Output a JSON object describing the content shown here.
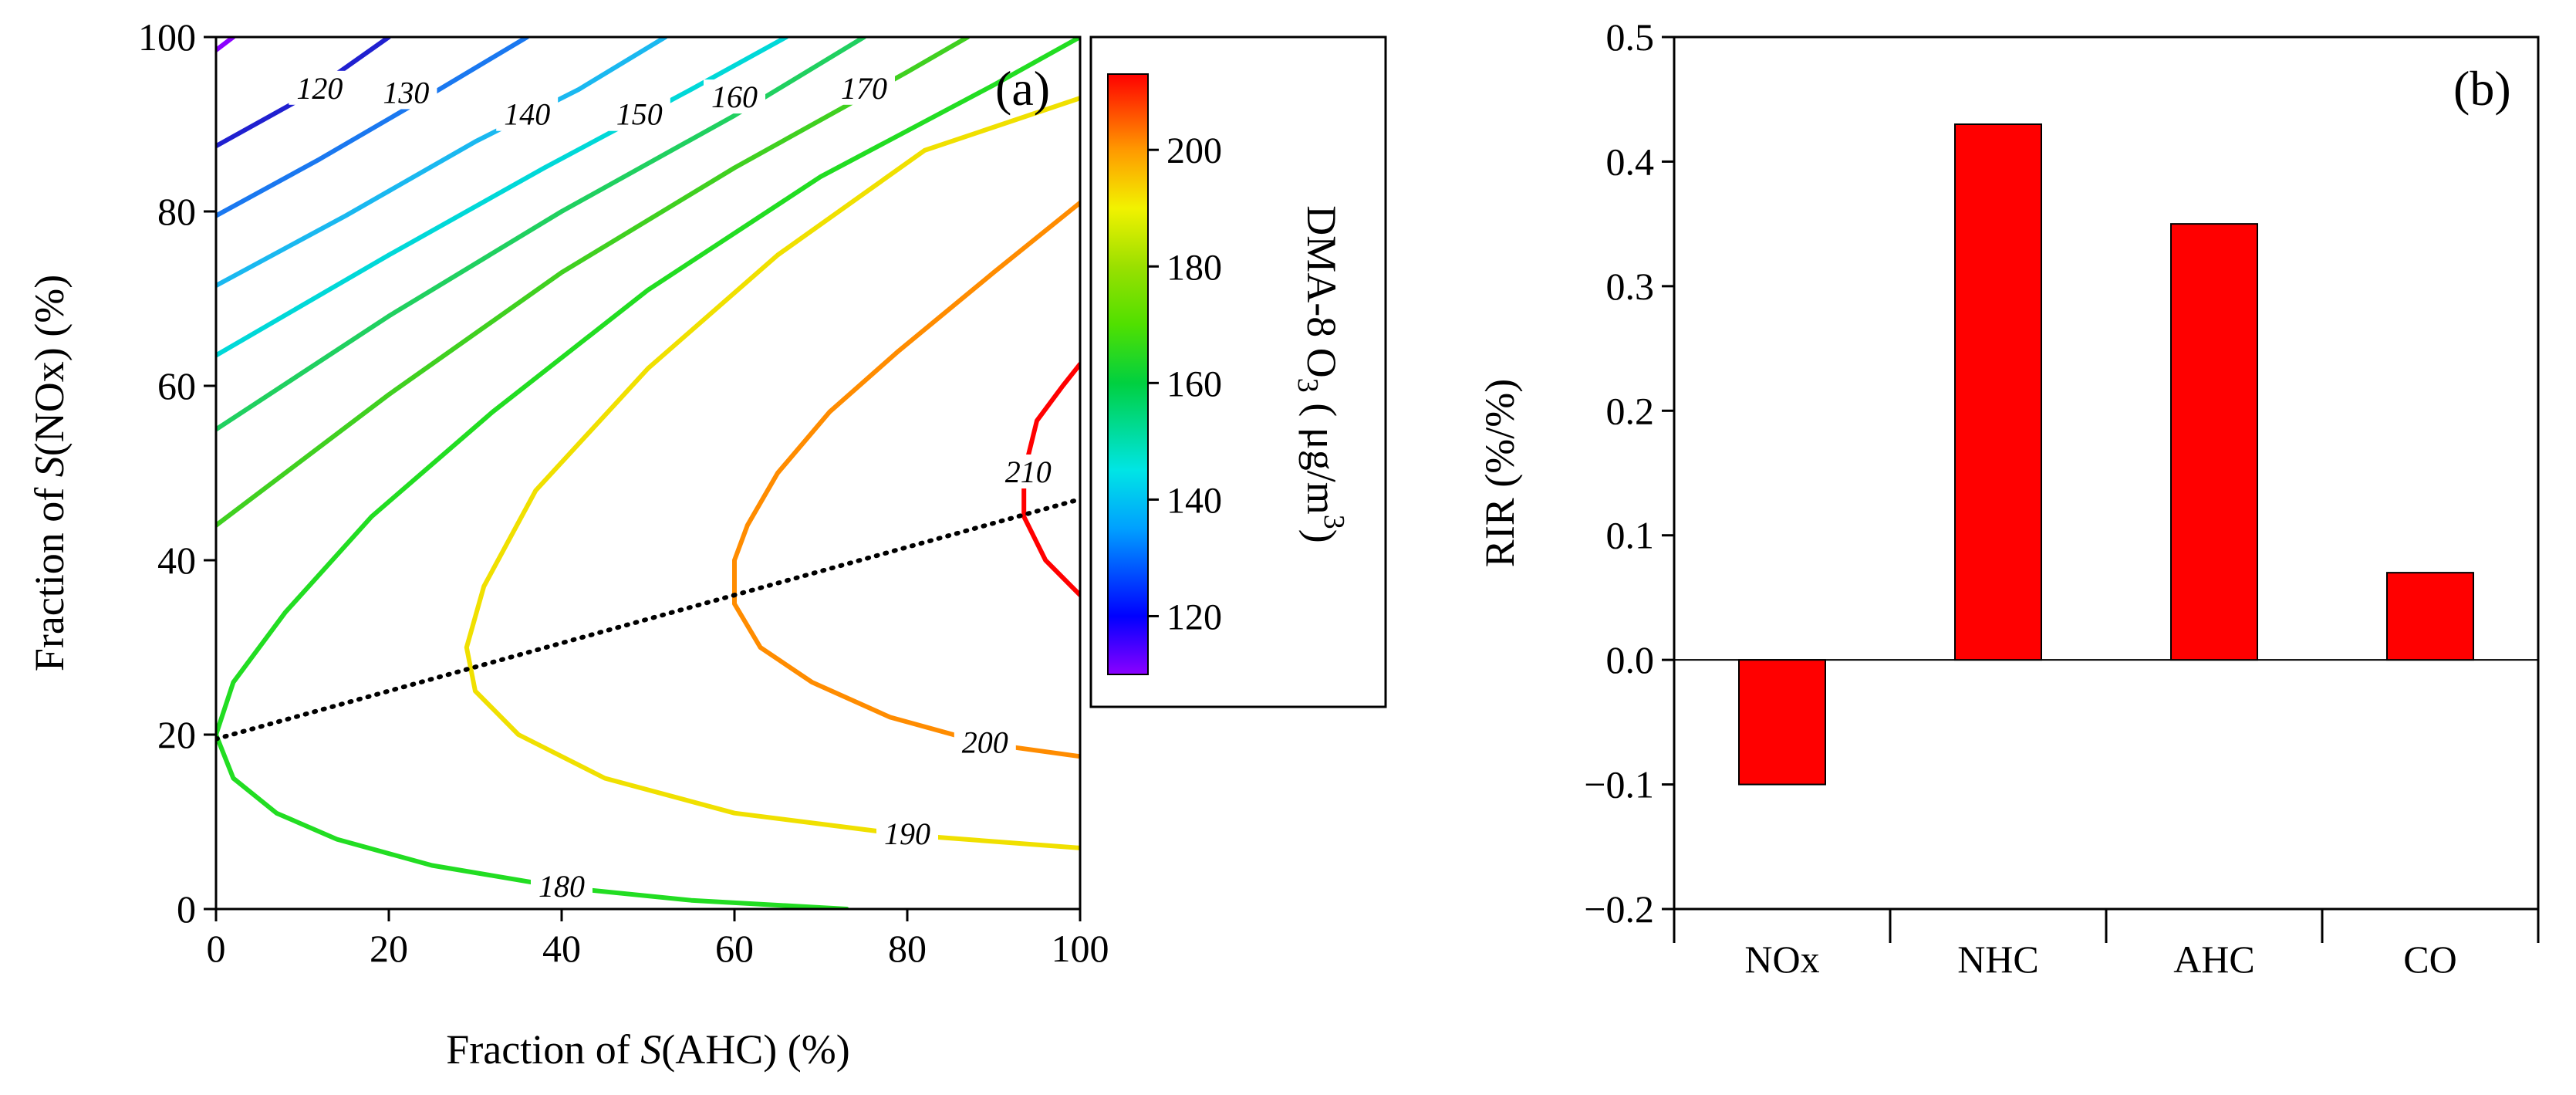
{
  "chart_data": [
    {
      "type": "contour",
      "panel_label": "(a)",
      "xlabel_prefix": "Fraction of ",
      "xlabel_var": "S",
      "xlabel_suffix": "(AHC) (%)",
      "ylabel_prefix": "Fraction of ",
      "ylabel_var": "S",
      "ylabel_suffix": "(NOx) (%)",
      "xlim": [
        0,
        100
      ],
      "ylim": [
        0,
        100
      ],
      "xticks": [
        0,
        20,
        40,
        60,
        80,
        100
      ],
      "yticks": [
        0,
        20,
        40,
        60,
        80,
        100
      ],
      "colorbar": {
        "title_main": "DMA-8 O",
        "title_sub": "3",
        "title_units": " ( μg/m",
        "title_units_sup": "3",
        "title_close": ")",
        "range": [
          110,
          213
        ],
        "ticks": [
          120,
          140,
          160,
          180,
          200
        ],
        "stops": [
          {
            "value": 110,
            "color": "#8b00ff"
          },
          {
            "value": 120,
            "color": "#0000ff"
          },
          {
            "value": 135,
            "color": "#00a0ff"
          },
          {
            "value": 145,
            "color": "#00e5e5"
          },
          {
            "value": 160,
            "color": "#00d040"
          },
          {
            "value": 170,
            "color": "#50e000"
          },
          {
            "value": 180,
            "color": "#9be000"
          },
          {
            "value": 190,
            "color": "#f2f200"
          },
          {
            "value": 200,
            "color": "#ff9900"
          },
          {
            "value": 213,
            "color": "#ff0000"
          }
        ]
      },
      "contours": [
        {
          "level": 110,
          "label": "",
          "color": "#8b00ff",
          "points": [
            [
              0,
              98.5
            ],
            [
              2,
              100
            ]
          ]
        },
        {
          "level": 120,
          "label": "120",
          "color": "#2020d0",
          "label_at": [
            12,
            94
          ],
          "points": [
            [
              0,
              87.5
            ],
            [
              10,
              93
            ],
            [
              20,
              100
            ]
          ]
        },
        {
          "level": 130,
          "label": "130",
          "color": "#1a78f0",
          "label_at": [
            22,
            93.5
          ],
          "points": [
            [
              0,
              79.5
            ],
            [
              12,
              86
            ],
            [
              25,
              93.5
            ],
            [
              36,
              100
            ]
          ]
        },
        {
          "level": 140,
          "label": "140",
          "color": "#1ab8f0",
          "label_at": [
            36,
            91
          ],
          "points": [
            [
              0,
              71.5
            ],
            [
              15,
              79.5
            ],
            [
              30,
              88
            ],
            [
              42,
              94
            ],
            [
              52,
              100
            ]
          ]
        },
        {
          "level": 150,
          "label": "150",
          "color": "#00d8d8",
          "label_at": [
            49,
            91
          ],
          "points": [
            [
              0,
              63.5
            ],
            [
              20,
              75
            ],
            [
              38,
              85
            ],
            [
              55,
              94
            ],
            [
              66,
              100
            ]
          ]
        },
        {
          "level": 160,
          "label": "160",
          "color": "#20d060",
          "label_at": [
            60,
            93
          ],
          "points": [
            [
              0,
              55
            ],
            [
              20,
              68
            ],
            [
              40,
              80
            ],
            [
              60,
              91
            ],
            [
              70,
              97
            ],
            [
              75,
              100
            ]
          ]
        },
        {
          "level": 170,
          "label": "170",
          "color": "#40d020",
          "label_at": [
            75,
            94
          ],
          "points": [
            [
              0,
              44
            ],
            [
              20,
              59
            ],
            [
              40,
              73
            ],
            [
              60,
              85
            ],
            [
              80,
              96
            ],
            [
              87,
              100
            ]
          ]
        },
        {
          "level": 180,
          "label": "180",
          "color": "#22dd22",
          "label_at": [
            40,
            2.5
          ],
          "points": [
            [
              73,
              0
            ],
            [
              55,
              1
            ],
            [
              40,
              2.5
            ],
            [
              25,
              5
            ],
            [
              14,
              8
            ],
            [
              7,
              11
            ],
            [
              2,
              15
            ],
            [
              0,
              20
            ],
            [
              2,
              26
            ],
            [
              8,
              34
            ],
            [
              18,
              45
            ],
            [
              32,
              57
            ],
            [
              50,
              71
            ],
            [
              70,
              84
            ],
            [
              90,
              94.5
            ],
            [
              100,
              100
            ]
          ]
        },
        {
          "level": 190,
          "label": "190",
          "color": "#f0e000",
          "label_at": [
            80,
            8.5
          ],
          "points": [
            [
              100,
              7
            ],
            [
              80,
              8.5
            ],
            [
              60,
              11
            ],
            [
              45,
              15
            ],
            [
              35,
              20
            ],
            [
              30,
              25
            ],
            [
              29,
              30
            ],
            [
              31,
              37
            ],
            [
              37,
              48
            ],
            [
              50,
              62
            ],
            [
              65,
              75
            ],
            [
              82,
              87
            ],
            [
              100,
              93
            ]
          ]
        },
        {
          "level": 200,
          "label": "200",
          "color": "#ff8c00",
          "label_at": [
            89,
            19
          ],
          "points": [
            [
              100,
              17.5
            ],
            [
              89,
              19
            ],
            [
              78,
              22
            ],
            [
              69,
              26
            ],
            [
              63,
              30
            ],
            [
              60,
              35
            ],
            [
              60,
              40
            ],
            [
              61.5,
              44
            ],
            [
              65,
              50
            ],
            [
              71,
              57
            ],
            [
              79,
              64
            ],
            [
              90,
              73
            ],
            [
              100,
              81
            ]
          ]
        },
        {
          "level": 210,
          "label": "210",
          "color": "#ff0000",
          "label_at": [
            94,
            50
          ],
          "points": [
            [
              100,
              36
            ],
            [
              96,
              40
            ],
            [
              94.5,
              43
            ],
            [
              93.5,
              45
            ],
            [
              93.5,
              50
            ],
            [
              95,
              56
            ],
            [
              98,
              60
            ],
            [
              100,
              62.5
            ]
          ]
        }
      ],
      "dotted_line": {
        "points": [
          [
            0,
            19.5
          ],
          [
            100,
            47
          ]
        ],
        "style": "dotted",
        "color": "#000000"
      }
    },
    {
      "type": "bar",
      "panel_label": "(b)",
      "ylabel": "RIR (%/%)",
      "xlabel": "",
      "categories": [
        "NOx",
        "NHC",
        "AHC",
        "CO"
      ],
      "values": [
        -0.1,
        0.43,
        0.35,
        0.07
      ],
      "ylim": [
        -0.2,
        0.5
      ],
      "yticks": [
        "-0.2",
        "-0.1",
        "0.0",
        "0.1",
        "0.2",
        "0.3",
        "0.4",
        "0.5"
      ],
      "bar_color": "#ff0000"
    }
  ]
}
